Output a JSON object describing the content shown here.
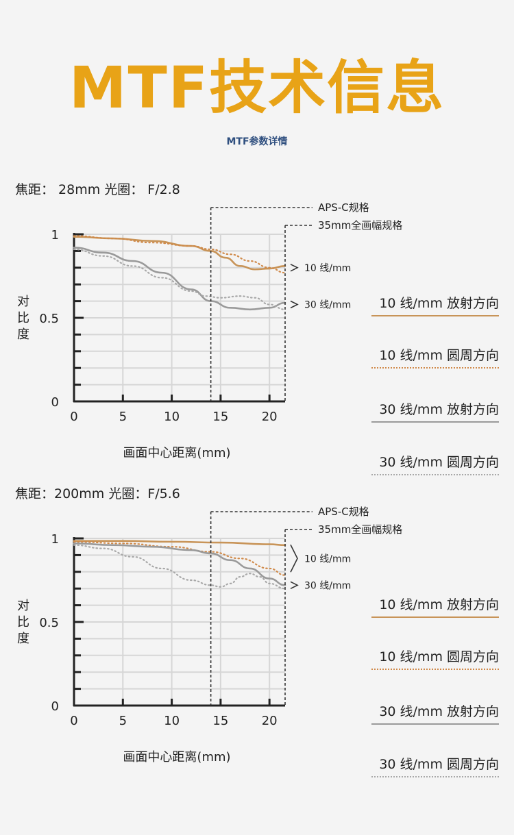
{
  "title": "MTF技术信息",
  "subtitle": "MTF参数详情",
  "colors": {
    "title": "#e8a317",
    "subtitle": "#2f4f7f",
    "radial_10": "#c89458",
    "sagittal_10": "#d08a4a",
    "radial_30": "#9a9a9a",
    "sagittal_30": "#a8a8a8",
    "axis": "#222222",
    "grid": "#d6d6d6",
    "background": "#f4f4f4"
  },
  "legend": [
    {
      "label": "10 线/mm  放射方向",
      "style": "solid",
      "color": "#c89458"
    },
    {
      "label": "10 线/mm  圆周方向",
      "style": "dotted",
      "color": "#d08a4a"
    },
    {
      "label": "30 线/mm  放射方向",
      "style": "solid",
      "color": "#9a9a9a"
    },
    {
      "label": "30 线/mm  圆周方向",
      "style": "dotted",
      "color": "#a8a8a8"
    }
  ],
  "chart_data": [
    {
      "type": "line",
      "params": "焦距：  28mm  光圈：  F/2.8",
      "ylabel": "对\n比\n度",
      "xlabel": "画面中心距离(mm)",
      "xlim": [
        0,
        21.6
      ],
      "ylim": [
        0,
        1
      ],
      "x_ticks": [
        0,
        5,
        10,
        15,
        20
      ],
      "y_tick_labels": [
        {
          "value": 1,
          "label": "1"
        },
        {
          "value": 0.5,
          "label": "0.5"
        },
        {
          "value": 0,
          "label": "0"
        }
      ],
      "grid": true,
      "annotations": [
        {
          "label": "APS-C规格",
          "x": 14
        },
        {
          "label": "35mm全画幅规格",
          "x": 21.6
        }
      ],
      "group_labels": [
        {
          "label": "10 线/mm",
          "y": 0.8
        },
        {
          "label": "30 线/mm",
          "y": 0.58
        }
      ],
      "series": [
        {
          "name": "10 线/mm  放射方向",
          "style": "solid",
          "color": "#c89458",
          "x": [
            0,
            4,
            8,
            12,
            14,
            15.5,
            17,
            18.5,
            20,
            21.6
          ],
          "y": [
            0.985,
            0.975,
            0.96,
            0.93,
            0.9,
            0.86,
            0.81,
            0.79,
            0.795,
            0.81
          ]
        },
        {
          "name": "10 线/mm  圆周方向",
          "style": "dotted",
          "color": "#d08a4a",
          "x": [
            0,
            4,
            8,
            12,
            14,
            16,
            18,
            20,
            21.6
          ],
          "y": [
            0.99,
            0.975,
            0.95,
            0.93,
            0.91,
            0.88,
            0.84,
            0.8,
            0.77
          ]
        },
        {
          "name": "30 线/mm  放射方向",
          "style": "solid",
          "color": "#9a9a9a",
          "x": [
            0,
            3,
            6,
            9,
            12,
            14,
            16,
            18,
            20,
            21.6
          ],
          "y": [
            0.92,
            0.89,
            0.84,
            0.77,
            0.67,
            0.6,
            0.56,
            0.55,
            0.56,
            0.59
          ]
        },
        {
          "name": "30 线/mm  圆周方向",
          "style": "dotted",
          "color": "#a8a8a8",
          "x": [
            0,
            3,
            6,
            9,
            12,
            13.5,
            15,
            17,
            18.5,
            20,
            21.6
          ],
          "y": [
            0.91,
            0.87,
            0.81,
            0.74,
            0.66,
            0.63,
            0.62,
            0.63,
            0.62,
            0.58,
            0.55
          ]
        }
      ]
    },
    {
      "type": "line",
      "params": "焦距：200mm  光圈：F/5.6",
      "ylabel": "对\n比\n度",
      "xlabel": "画面中心距离(mm)",
      "xlim": [
        0,
        21.6
      ],
      "ylim": [
        0,
        1
      ],
      "x_ticks": [
        0,
        5,
        10,
        15,
        20
      ],
      "y_tick_labels": [
        {
          "value": 1,
          "label": "1"
        },
        {
          "value": 0.5,
          "label": "0.5"
        },
        {
          "value": 0,
          "label": "0"
        }
      ],
      "grid": true,
      "annotations": [
        {
          "label": "APS-C规格",
          "x": 14
        },
        {
          "label": "35mm全画幅规格",
          "x": 21.6
        }
      ],
      "group_labels": [
        {
          "label": "10 线/mm",
          "y": 0.88
        },
        {
          "label": "30 线/mm",
          "y": 0.72
        }
      ],
      "series": [
        {
          "name": "10 线/mm  放射方向",
          "style": "solid",
          "color": "#c89458",
          "x": [
            0,
            5,
            10,
            15,
            20,
            21.6
          ],
          "y": [
            0.985,
            0.985,
            0.98,
            0.975,
            0.965,
            0.96
          ]
        },
        {
          "name": "10 线/mm  圆周方向",
          "style": "dotted",
          "color": "#d08a4a",
          "x": [
            0,
            5,
            10,
            14,
            17,
            20,
            21.6
          ],
          "y": [
            0.98,
            0.97,
            0.95,
            0.92,
            0.88,
            0.82,
            0.78
          ]
        },
        {
          "name": "30 线/mm  放射方向",
          "style": "solid",
          "color": "#9a9a9a",
          "x": [
            0,
            4,
            8,
            12,
            14,
            16,
            18,
            20,
            21.6
          ],
          "y": [
            0.97,
            0.96,
            0.95,
            0.93,
            0.91,
            0.87,
            0.82,
            0.76,
            0.72
          ]
        },
        {
          "name": "30 线/mm  圆周方向",
          "style": "dotted",
          "color": "#a8a8a8",
          "x": [
            0,
            3,
            6,
            9,
            12,
            14,
            15,
            16,
            17,
            18,
            19,
            20,
            21.6
          ],
          "y": [
            0.96,
            0.94,
            0.89,
            0.82,
            0.75,
            0.72,
            0.71,
            0.73,
            0.77,
            0.79,
            0.77,
            0.73,
            0.7
          ]
        }
      ]
    }
  ]
}
